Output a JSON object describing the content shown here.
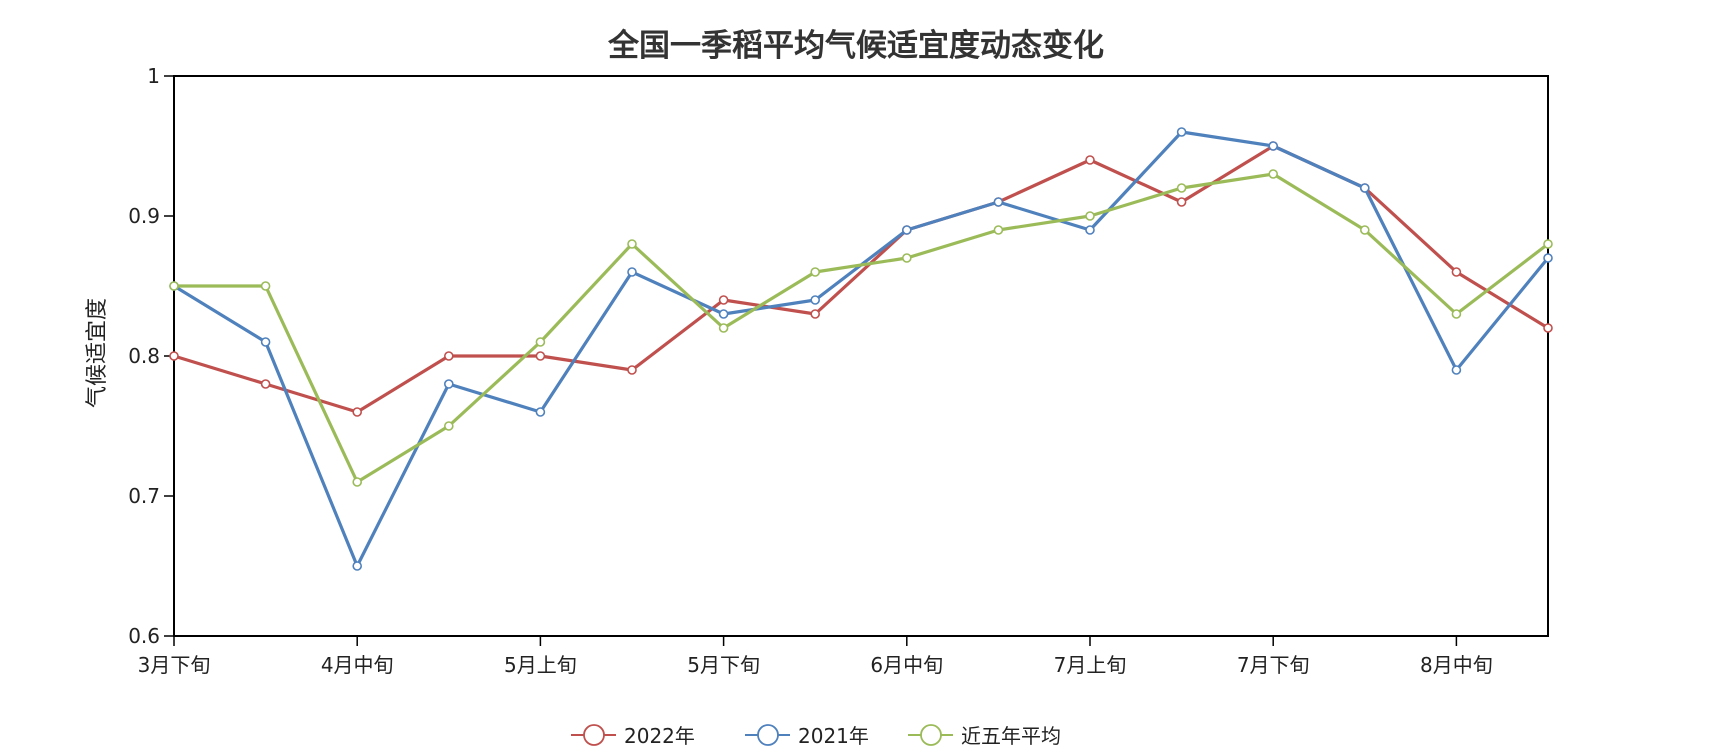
{
  "chart_data": {
    "type": "line",
    "title": "全国一季稻平均气候适宜度动态变化",
    "ylabel": "气候适宜度",
    "xlabel": "",
    "ylim": [
      0.6,
      1.0
    ],
    "yticks": [
      "0.6",
      "0.7",
      "0.8",
      "0.9",
      "1"
    ],
    "x_points": 16,
    "x_tick_labels": [
      "3月下旬",
      "4月中旬",
      "5月上旬",
      "5月下旬",
      "6月中旬",
      "7月上旬",
      "7月下旬",
      "8月中旬"
    ],
    "grid": false,
    "legend_position": "bottom",
    "series": [
      {
        "name": "2022年",
        "color": "#c0504d",
        "values": [
          0.8,
          0.78,
          0.76,
          0.8,
          0.8,
          0.79,
          0.84,
          0.83,
          0.89,
          0.91,
          0.94,
          0.91,
          0.95,
          0.92,
          0.86,
          0.82
        ]
      },
      {
        "name": "2021年",
        "color": "#4f81bd",
        "values": [
          0.85,
          0.81,
          0.65,
          0.78,
          0.76,
          0.86,
          0.83,
          0.84,
          0.89,
          0.91,
          0.89,
          0.96,
          0.95,
          0.92,
          0.79,
          0.87
        ]
      },
      {
        "name": "近五年平均",
        "color": "#9bbb59",
        "values": [
          0.85,
          0.85,
          0.71,
          0.75,
          0.81,
          0.88,
          0.82,
          0.86,
          0.87,
          0.89,
          0.9,
          0.92,
          0.93,
          0.89,
          0.83,
          0.88
        ]
      }
    ]
  }
}
